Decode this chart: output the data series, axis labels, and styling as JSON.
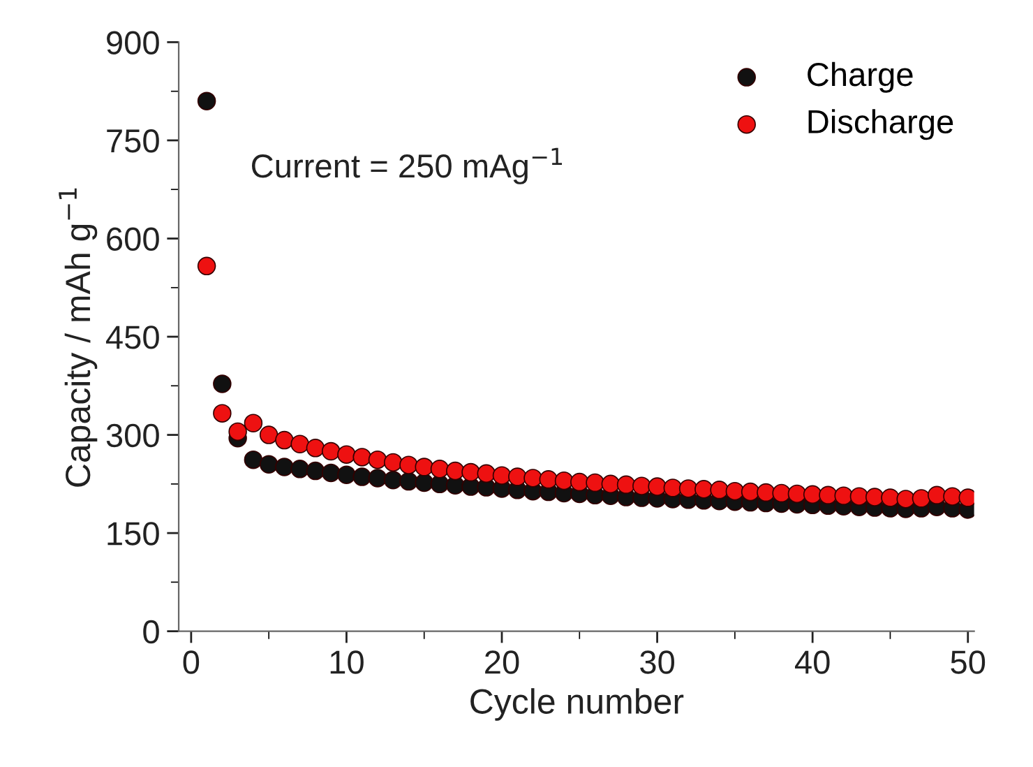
{
  "chart_data": {
    "type": "scatter",
    "xlabel": "Cycle number",
    "ylabel": "Capacity / mAh g$^{−1}$",
    "annotations": [
      "Current = 250 mAg$^{−1}$"
    ],
    "x": [
      1,
      2,
      3,
      4,
      5,
      6,
      7,
      8,
      9,
      10,
      11,
      12,
      13,
      14,
      15,
      16,
      17,
      18,
      19,
      20,
      21,
      22,
      23,
      24,
      25,
      26,
      27,
      28,
      29,
      30,
      31,
      32,
      33,
      34,
      35,
      36,
      37,
      38,
      39,
      40,
      41,
      42,
      43,
      44,
      45,
      46,
      47,
      48,
      49,
      50
    ],
    "series": [
      {
        "name": "Charge",
        "color": "#111111",
        "values": [
          810,
          378,
          295,
          262,
          255,
          251,
          248,
          245,
          242,
          239,
          236,
          234,
          231,
          229,
          227,
          225,
          223,
          221,
          220,
          218,
          216,
          214,
          213,
          211,
          210,
          208,
          207,
          205,
          204,
          203,
          202,
          201,
          200,
          199,
          198,
          197,
          196,
          195,
          194,
          193,
          192,
          191,
          190,
          189,
          188,
          187,
          188,
          190,
          188,
          186
        ]
      },
      {
        "name": "Discharge",
        "color": "#ee1111",
        "values": [
          558,
          333,
          305,
          318,
          300,
          292,
          286,
          280,
          275,
          270,
          266,
          262,
          258,
          254,
          251,
          248,
          245,
          243,
          241,
          238,
          236,
          234,
          232,
          230,
          228,
          227,
          225,
          224,
          222,
          221,
          219,
          218,
          217,
          216,
          214,
          213,
          212,
          211,
          210,
          209,
          208,
          207,
          206,
          205,
          204,
          202,
          203,
          208,
          206,
          204
        ]
      }
    ],
    "xlim": [
      -0.8,
      50.4
    ],
    "ylim": [
      0,
      900
    ],
    "xticks": [
      0,
      10,
      20,
      30,
      40,
      50
    ],
    "yticks": [
      0,
      150,
      300,
      450,
      600,
      750,
      900
    ],
    "marker": "circle",
    "legend": "top right",
    "grid": false
  }
}
